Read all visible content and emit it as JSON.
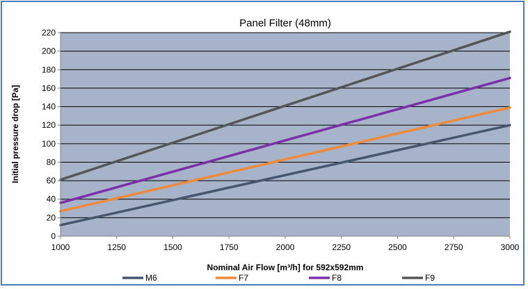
{
  "chart_data": {
    "type": "line",
    "title": "Panel Filter (48mm)",
    "xlabel": "Nominal Air Flow [m³/h] for 592x592mm",
    "ylabel": "Initial pressure drop [Pa]",
    "xlim": [
      1000,
      3000
    ],
    "ylim": [
      0,
      220
    ],
    "x_ticks": [
      "1000",
      "1250",
      "1500",
      "1750",
      "2000",
      "2250",
      "2500",
      "2750",
      "3000"
    ],
    "y_ticks": [
      "0",
      "20",
      "40",
      "60",
      "80",
      "100",
      "120",
      "140",
      "160",
      "180",
      "200",
      "220"
    ],
    "grid": "horizontal",
    "plot_background": "#a6b3c8",
    "legend_position": "bottom",
    "series": [
      {
        "name": "M6",
        "color": "#46566e",
        "x": [
          1000,
          3000
        ],
        "y": [
          12,
          120
        ]
      },
      {
        "name": "F7",
        "color": "#ef8a3a",
        "x": [
          1000,
          3000
        ],
        "y": [
          27,
          139
        ]
      },
      {
        "name": "F8",
        "color": "#7b2fa8",
        "x": [
          1000,
          3000
        ],
        "y": [
          36,
          171
        ]
      },
      {
        "name": "F9",
        "color": "#555555",
        "x": [
          1000,
          3000
        ],
        "y": [
          61,
          221
        ]
      }
    ]
  }
}
